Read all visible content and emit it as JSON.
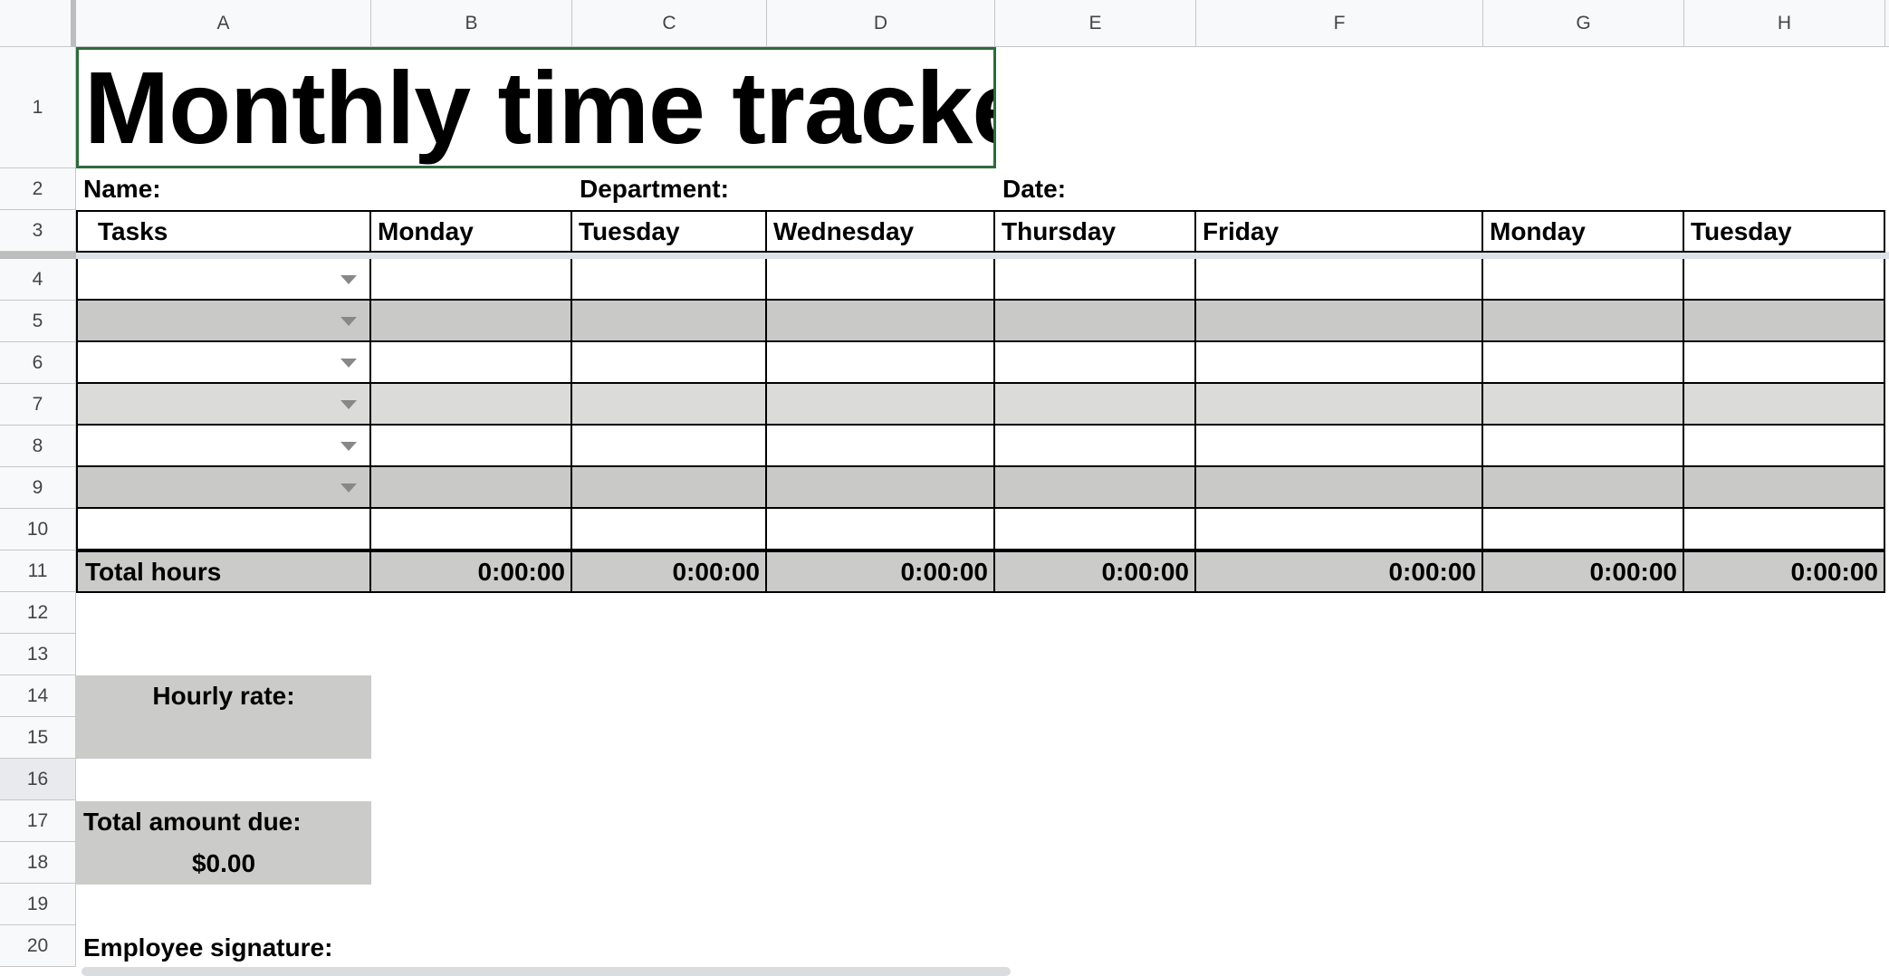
{
  "columns": [
    "A",
    "B",
    "C",
    "D",
    "E",
    "F",
    "G",
    "H"
  ],
  "rows": [
    "1",
    "2",
    "3",
    "4",
    "5",
    "6",
    "7",
    "8",
    "9",
    "10",
    "11",
    "12",
    "13",
    "14",
    "15",
    "16",
    "17",
    "18",
    "19",
    "20"
  ],
  "title": "Monthly time tracker",
  "info": {
    "name_label": "Name:",
    "department_label": "Department:",
    "date_label": "Date:"
  },
  "table": {
    "headers": [
      "Tasks",
      "Monday",
      "Tuesday",
      "Wednesday",
      "Thursday",
      "Friday",
      "Monday",
      "Tuesday"
    ],
    "total_label": "Total hours",
    "totals": [
      "0:00:00",
      "0:00:00",
      "0:00:00",
      "0:00:00",
      "0:00:00",
      "0:00:00",
      "0:00:00"
    ]
  },
  "summary": {
    "hourly_rate_label": "Hourly rate:",
    "total_due_label": "Total amount due:",
    "total_due_value": "$0.00",
    "signature_label": "Employee signature:"
  },
  "colors": {
    "selection": "#2e6b3a",
    "stripe_dark": "#c9cac8",
    "stripe_light": "#dbdcda",
    "total_row": "#cbccca"
  }
}
